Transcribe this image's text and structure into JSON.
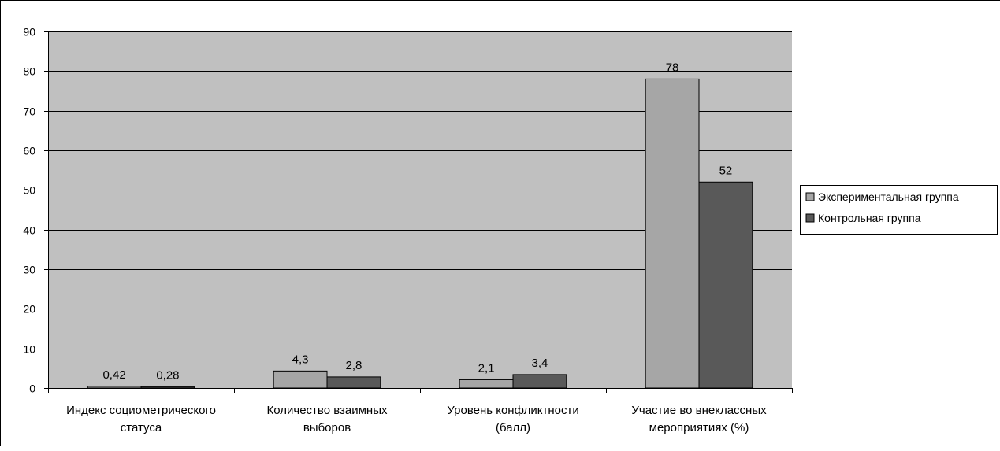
{
  "chart_data": {
    "type": "bar",
    "categories": [
      [
        "Индекс социометрического",
        "статуса"
      ],
      [
        "Количество взаимных",
        "выборов"
      ],
      [
        "Уровень конфликтности",
        "(балл)"
      ],
      [
        "Участие во внеклассных",
        "мероприятиях (%)"
      ]
    ],
    "series": [
      {
        "name": "Экспериментальная группа",
        "values": [
          0.42,
          4.3,
          2.1,
          78
        ],
        "labels": [
          "0,42",
          "4,3",
          "2,1",
          "78"
        ],
        "color": "#a6a6a6"
      },
      {
        "name": "Контрольная группа",
        "values": [
          0.28,
          2.8,
          3.4,
          52
        ],
        "labels": [
          "0,28",
          "2,8",
          "3,4",
          "52"
        ],
        "color": "#595959"
      }
    ],
    "ylim": [
      0,
      90
    ],
    "yticks": [
      0,
      10,
      20,
      30,
      40,
      50,
      60,
      70,
      80,
      90
    ],
    "grid": true,
    "plot_background": "#c0c0c0",
    "legend_position": "right"
  }
}
